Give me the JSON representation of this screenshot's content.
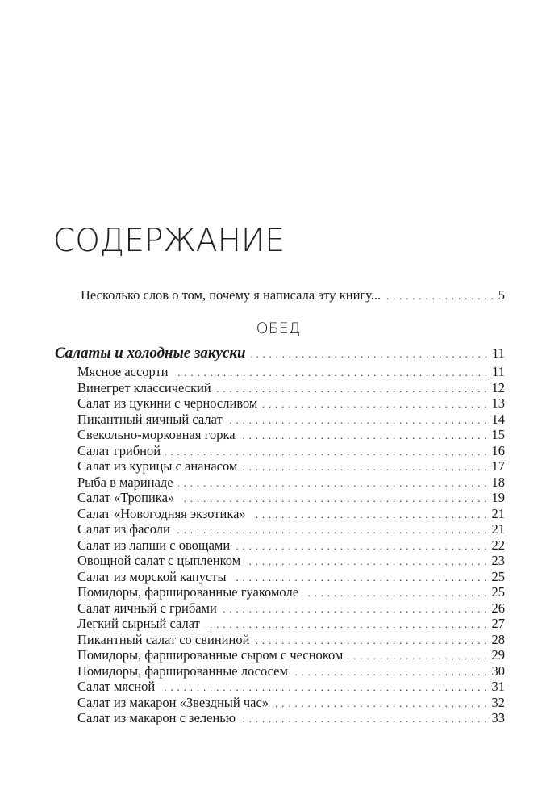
{
  "title": "СОДЕРЖАНИЕ",
  "intro": {
    "label": "Несколько слов о том, почему я написала эту книгу...",
    "page": "5"
  },
  "part": "ОБЕД",
  "section": {
    "label": "Салаты и холодные закуски",
    "page": "11"
  },
  "items": [
    {
      "label": "Мясное ассорти",
      "page": "11"
    },
    {
      "label": "Винегрет классический",
      "page": "12"
    },
    {
      "label": "Салат из цукини с черносливом",
      "page": "13"
    },
    {
      "label": "Пикантный яичный салат",
      "page": "14"
    },
    {
      "label": "Свекольно-морковная горка",
      "page": "15"
    },
    {
      "label": "Салат грибной",
      "page": "16"
    },
    {
      "label": "Салат из курицы с ананасом",
      "page": "17"
    },
    {
      "label": "Рыба в маринаде",
      "page": "18"
    },
    {
      "label": "Салат «Тропика»",
      "page": "19"
    },
    {
      "label": "Салат «Новогодняя экзотика»",
      "page": "21"
    },
    {
      "label": "Салат из фасоли",
      "page": "21"
    },
    {
      "label": "Салат из лапши с овощами",
      "page": "22"
    },
    {
      "label": "Овощной салат с цыпленком",
      "page": "23"
    },
    {
      "label": "Салат из морской капусты",
      "page": "25"
    },
    {
      "label": "Помидоры, фаршированные гуакомоле",
      "page": "25"
    },
    {
      "label": "Салат яичный с грибами",
      "page": "26"
    },
    {
      "label": "Легкий сырный салат",
      "page": "27"
    },
    {
      "label": "Пикантный салат со свининой",
      "page": "28"
    },
    {
      "label": "Помидоры, фаршированные сыром с чесноком",
      "page": "29"
    },
    {
      "label": "Помидоры, фаршированные лососем",
      "page": "30"
    },
    {
      "label": "Салат мясной",
      "page": "31"
    },
    {
      "label": "Салат из макарон «Звездный час»",
      "page": "32"
    },
    {
      "label": "Салат из макарон с зеленью",
      "page": "33"
    }
  ]
}
